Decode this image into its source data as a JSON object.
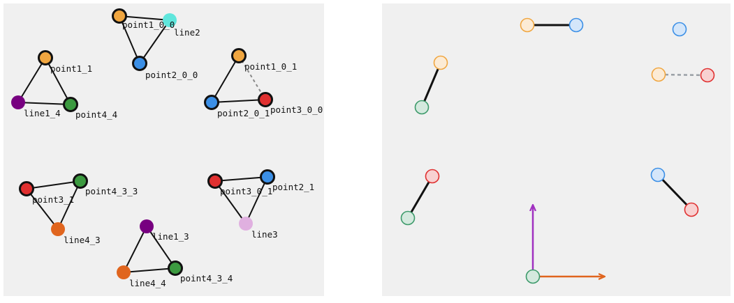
{
  "left_graph": {
    "nodes": [
      {
        "id": "n_p100",
        "label": "point1_0_0",
        "color": "#f0a640",
        "style": "bold"
      },
      {
        "id": "n_line2",
        "label": "line2",
        "color": "#5fe6dc",
        "style": "plain"
      },
      {
        "id": "n_p200",
        "label": "point2_0_0",
        "color": "#3b8fe6",
        "style": "bold"
      },
      {
        "id": "n_p11",
        "label": "point1_1",
        "color": "#f0a640",
        "style": "bold"
      },
      {
        "id": "n_l14",
        "label": "line1_4",
        "color": "#770080",
        "style": "plain"
      },
      {
        "id": "n_p44",
        "label": "point4_4",
        "color": "#3c9a40",
        "style": "bold"
      },
      {
        "id": "n_p101",
        "label": "point1_0_1",
        "color": "#f0a640",
        "style": "bold"
      },
      {
        "id": "n_p201",
        "label": "point2_0_1",
        "color": "#3b8fe6",
        "style": "bold"
      },
      {
        "id": "n_p300",
        "label": "point3_0_0",
        "color": "#e03030",
        "style": "bold"
      },
      {
        "id": "n_p31",
        "label": "point3_1",
        "color": "#e03030",
        "style": "bold"
      },
      {
        "id": "n_p433",
        "label": "point4_3_3",
        "color": "#3c9a40",
        "style": "bold"
      },
      {
        "id": "n_l43",
        "label": "line4_3",
        "color": "#e0651e",
        "style": "plain"
      },
      {
        "id": "n_p301",
        "label": "point3_0_1",
        "color": "#e03030",
        "style": "bold"
      },
      {
        "id": "n_p21",
        "label": "point2_1",
        "color": "#3b8fe6",
        "style": "bold"
      },
      {
        "id": "n_line3",
        "label": "line3",
        "color": "#e0b0e0",
        "style": "plain"
      },
      {
        "id": "n_l13",
        "label": "line1_3",
        "color": "#770080",
        "style": "plain"
      },
      {
        "id": "n_l44",
        "label": "line4_4",
        "color": "#e0651e",
        "style": "plain"
      },
      {
        "id": "n_p434",
        "label": "point4_3_4",
        "color": "#3c9a40",
        "style": "bold"
      }
    ],
    "edges": [
      {
        "from": "n_p100",
        "to": "n_line2",
        "style": "solid"
      },
      {
        "from": "n_p100",
        "to": "n_p200",
        "style": "solid"
      },
      {
        "from": "n_line2",
        "to": "n_p200",
        "style": "solid"
      },
      {
        "from": "n_p11",
        "to": "n_l14",
        "style": "solid"
      },
      {
        "from": "n_p11",
        "to": "n_p44",
        "style": "solid"
      },
      {
        "from": "n_l14",
        "to": "n_p44",
        "style": "solid"
      },
      {
        "from": "n_p101",
        "to": "n_p201",
        "style": "solid"
      },
      {
        "from": "n_p101",
        "to": "n_p300",
        "style": "dashed"
      },
      {
        "from": "n_p201",
        "to": "n_p300",
        "style": "solid"
      },
      {
        "from": "n_p31",
        "to": "n_p433",
        "style": "solid"
      },
      {
        "from": "n_p31",
        "to": "n_l43",
        "style": "solid"
      },
      {
        "from": "n_p433",
        "to": "n_l43",
        "style": "solid"
      },
      {
        "from": "n_p301",
        "to": "n_p21",
        "style": "solid"
      },
      {
        "from": "n_p301",
        "to": "n_line3",
        "style": "solid"
      },
      {
        "from": "n_p21",
        "to": "n_line3",
        "style": "solid"
      },
      {
        "from": "n_l13",
        "to": "n_l44",
        "style": "solid"
      },
      {
        "from": "n_l13",
        "to": "n_p434",
        "style": "solid"
      },
      {
        "from": "n_l44",
        "to": "n_p434",
        "style": "solid"
      }
    ]
  },
  "right_graph": {
    "nodes": [
      {
        "id": "r1a",
        "color": "#f0a640"
      },
      {
        "id": "r1b",
        "color": "#3b8fe6"
      },
      {
        "id": "r2",
        "color": "#3b8fe6"
      },
      {
        "id": "r3a",
        "color": "#f0a640"
      },
      {
        "id": "r3b",
        "color": "#3c9a6a"
      },
      {
        "id": "r4a",
        "color": "#f0a640"
      },
      {
        "id": "r4b",
        "color": "#e03030"
      },
      {
        "id": "r5a",
        "color": "#e03030"
      },
      {
        "id": "r5b",
        "color": "#3c9a6a"
      },
      {
        "id": "r6a",
        "color": "#3b8fe6"
      },
      {
        "id": "r6b",
        "color": "#e03030"
      },
      {
        "id": "r7",
        "color": "#3c9a6a"
      }
    ],
    "edges": [
      {
        "from": "r1a",
        "to": "r1b",
        "style": "solid"
      },
      {
        "from": "r3a",
        "to": "r3b",
        "style": "solid"
      },
      {
        "from": "r4a",
        "to": "r4b",
        "style": "dashed"
      },
      {
        "from": "r5a",
        "to": "r5b",
        "style": "solid"
      },
      {
        "from": "r6a",
        "to": "r6b",
        "style": "solid"
      }
    ],
    "arrows": [
      {
        "id": "arrow-up",
        "color": "#a030c0"
      },
      {
        "id": "arrow-right",
        "color": "#e0651e"
      }
    ]
  }
}
